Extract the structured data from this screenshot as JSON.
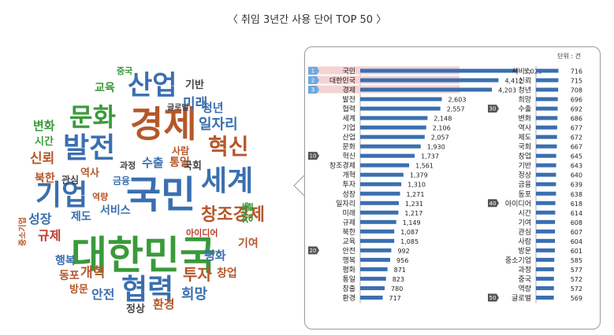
{
  "title": "〈 취임 3년간 사용 단어 TOP 50 〉",
  "colors": {
    "bar": "#3a6fb0",
    "highlight": "#f6d3d3",
    "badge": "#6fa8dc",
    "badge_dark": "#555555",
    "panel_border": "#9a9a9a"
  },
  "unit_label": "단위 : 건",
  "word_cloud": [
    {
      "word": "국민",
      "color": "#3a6fb0"
    },
    {
      "word": "대한민국",
      "color": "#3a9a3a"
    },
    {
      "word": "경제",
      "color": "#b5572a"
    },
    {
      "word": "문화",
      "color": "#3a9a3a"
    },
    {
      "word": "발전",
      "color": "#3a6fb0"
    },
    {
      "word": "산업",
      "color": "#3a6fb0"
    },
    {
      "word": "세계",
      "color": "#3a6fb0"
    },
    {
      "word": "기업",
      "color": "#3a6fb0"
    },
    {
      "word": "협력",
      "color": "#3a6fb0"
    },
    {
      "word": "혁신",
      "color": "#b5572a"
    },
    {
      "word": "창조경제",
      "color": "#b5572a"
    },
    {
      "word": "일자리",
      "color": "#3a6fb0"
    },
    {
      "word": "미래",
      "color": "#3a6fb0"
    },
    {
      "word": "청년",
      "color": "#3a6fb0"
    },
    {
      "word": "기반",
      "color": "#444444"
    },
    {
      "word": "교육",
      "color": "#3a9a3a"
    },
    {
      "word": "중국",
      "color": "#3a9a3a"
    },
    {
      "word": "글로벌",
      "color": "#444444"
    },
    {
      "word": "변화",
      "color": "#3a9a3a"
    },
    {
      "word": "시간",
      "color": "#3a9a3a"
    },
    {
      "word": "신뢰",
      "color": "#b5572a"
    },
    {
      "word": "북한",
      "color": "#b5572a"
    },
    {
      "word": "관심",
      "color": "#444444"
    },
    {
      "word": "역사",
      "color": "#b5572a"
    },
    {
      "word": "과정",
      "color": "#444444"
    },
    {
      "word": "수출",
      "color": "#3a6fb0"
    },
    {
      "word": "통일",
      "color": "#b5572a"
    },
    {
      "word": "사람",
      "color": "#b5572a"
    },
    {
      "word": "국회",
      "color": "#444444"
    },
    {
      "word": "금융",
      "color": "#3a6fb0"
    },
    {
      "word": "성장",
      "color": "#3a6fb0"
    },
    {
      "word": "제도",
      "color": "#3a6fb0"
    },
    {
      "word": "역량",
      "color": "#b5572a"
    },
    {
      "word": "서비스",
      "color": "#3a6fb0"
    },
    {
      "word": "중소기업",
      "color": "#b5572a"
    },
    {
      "word": "규제",
      "color": "#c0392b"
    },
    {
      "word": "아이디어",
      "color": "#c0392b"
    },
    {
      "word": "창출",
      "color": "#3a9a3a"
    },
    {
      "word": "기여",
      "color": "#b5572a"
    },
    {
      "word": "행복",
      "color": "#3a6fb0"
    },
    {
      "word": "평화",
      "color": "#3a6fb0"
    },
    {
      "word": "동포",
      "color": "#b5572a"
    },
    {
      "word": "개혁",
      "color": "#b5572a"
    },
    {
      "word": "방문",
      "color": "#b5572a"
    },
    {
      "word": "투자",
      "color": "#b5572a"
    },
    {
      "word": "창업",
      "color": "#b5572a"
    },
    {
      "word": "안전",
      "color": "#3a6fb0"
    },
    {
      "word": "희망",
      "color": "#3a6fb0"
    },
    {
      "word": "정상",
      "color": "#444444"
    },
    {
      "word": "환경",
      "color": "#b5572a"
    }
  ],
  "chart_data": [
    {
      "type": "bar",
      "orientation": "horizontal",
      "categories": [
        "국민",
        "대한민국",
        "경제",
        "발전",
        "협력",
        "세계",
        "기업",
        "산업",
        "문화",
        "혁신",
        "창조경제",
        "개혁",
        "투자",
        "성장",
        "일자리",
        "미래",
        "규제",
        "북한",
        "교육",
        "안전",
        "행복",
        "평화",
        "통일",
        "창출",
        "환경"
      ],
      "values": [
        5029,
        4412,
        4203,
        2603,
        2557,
        2148,
        2106,
        2057,
        1930,
        1737,
        1561,
        1379,
        1310,
        1271,
        1231,
        1217,
        1149,
        1087,
        1085,
        992,
        956,
        871,
        823,
        780,
        717
      ],
      "value_labels": [
        "5,029",
        "4,412",
        "4,203",
        "2,603",
        "2,557",
        "2,148",
        "2,106",
        "2,057",
        "1,930",
        "1,737",
        "1,561",
        "1,379",
        "1,310",
        "1,271",
        "1,231",
        "1,217",
        "1,149",
        "1,087",
        "1,085",
        "992",
        "956",
        "871",
        "823",
        "780",
        "717"
      ],
      "badges": [
        {
          "rank": "1",
          "index": 0
        },
        {
          "rank": "2",
          "index": 1
        },
        {
          "rank": "3",
          "index": 2
        },
        {
          "rank": "10",
          "index": 9
        },
        {
          "rank": "20",
          "index": 19
        }
      ]
    },
    {
      "type": "bar",
      "orientation": "horizontal",
      "categories": [
        "서비스",
        "신뢰",
        "청년",
        "희망",
        "수출",
        "변화",
        "역사",
        "제도",
        "국회",
        "창업",
        "기반",
        "정상",
        "금융",
        "동포",
        "아이디어",
        "시간",
        "기여",
        "관심",
        "사람",
        "방문",
        "중소기업",
        "과정",
        "중국",
        "역량",
        "글로벌"
      ],
      "values": [
        716,
        715,
        708,
        696,
        692,
        686,
        677,
        672,
        667,
        645,
        643,
        640,
        639,
        638,
        618,
        614,
        608,
        607,
        604,
        601,
        585,
        577,
        572,
        572,
        569
      ],
      "value_labels": [
        "716",
        "715",
        "708",
        "696",
        "692",
        "686",
        "677",
        "672",
        "667",
        "645",
        "643",
        "640",
        "639",
        "638",
        "618",
        "614",
        "608",
        "607",
        "604",
        "601",
        "585",
        "577",
        "572",
        "572",
        "569"
      ],
      "badges": [
        {
          "rank": "30",
          "index": 4
        },
        {
          "rank": "40",
          "index": 14
        },
        {
          "rank": "50",
          "index": 24
        }
      ]
    }
  ]
}
